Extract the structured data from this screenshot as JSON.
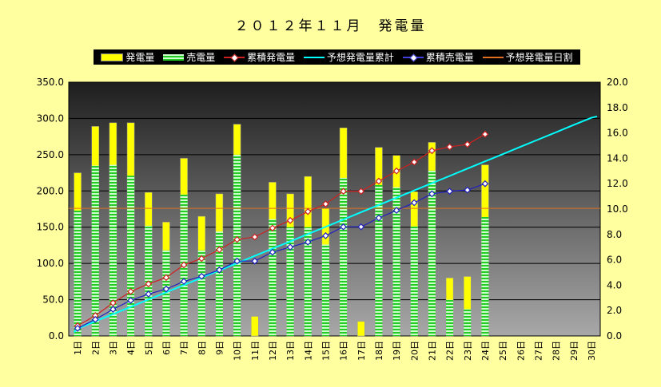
{
  "chart_data": {
    "type": "bar",
    "title": "２０１２年１１月　発電量",
    "categories": [
      "1日",
      "2日",
      "3日",
      "4日",
      "5日",
      "6日",
      "7日",
      "8日",
      "9日",
      "10日",
      "11日",
      "12日",
      "13日",
      "14日",
      "15日",
      "16日",
      "17日",
      "18日",
      "19日",
      "20日",
      "21日",
      "22日",
      "23日",
      "24日",
      "25日",
      "26日",
      "27日",
      "28日",
      "29日",
      "30日"
    ],
    "ylim_left": [
      0,
      350
    ],
    "ylim_right": [
      0,
      20
    ],
    "left_ticks": [
      "0.0",
      "50.0",
      "100.0",
      "150.0",
      "200.0",
      "250.0",
      "300.0",
      "350.0"
    ],
    "right_ticks": [
      "0.0",
      "2.0",
      "4.0",
      "6.0",
      "8.0",
      "10.0",
      "12.0",
      "14.0",
      "16.0",
      "18.0",
      "20.0"
    ],
    "grid": true,
    "legend_position": "top",
    "series": [
      {
        "name": "発電量",
        "kind": "bar",
        "axis": "left",
        "color": "#FFFF00",
        "values": [
          225,
          289,
          294,
          294,
          198,
          157,
          245,
          165,
          196,
          292,
          27,
          212,
          196,
          220,
          176,
          287,
          20,
          260,
          249,
          199,
          267,
          80,
          82,
          236,
          null,
          null,
          null,
          null,
          null,
          null
        ]
      },
      {
        "name": "売電量",
        "kind": "bar",
        "axis": "left",
        "color": "#33DD33",
        "values": [
          173,
          235,
          236,
          221,
          152,
          118,
          195,
          118,
          144,
          250,
          0,
          161,
          150,
          150,
          126,
          218,
          0,
          208,
          205,
          151,
          228,
          50,
          37,
          164,
          null,
          null,
          null,
          null,
          null,
          null
        ]
      },
      {
        "name": "累積発電量",
        "kind": "line-marker",
        "axis": "right",
        "color": "#D02020",
        "values": [
          0.8,
          1.6,
          2.6,
          3.5,
          4.1,
          4.6,
          5.6,
          6.1,
          6.8,
          7.6,
          7.8,
          8.5,
          9.1,
          9.8,
          10.4,
          11.4,
          11.4,
          12.2,
          13.0,
          13.7,
          14.6,
          14.9,
          15.1,
          15.9,
          null,
          null,
          null,
          null,
          null,
          null
        ]
      },
      {
        "name": "予想発電量累計",
        "kind": "line",
        "axis": "right",
        "color": "#00FFFF",
        "values": [
          0.57,
          1.15,
          1.72,
          2.29,
          2.87,
          3.44,
          4.01,
          4.59,
          5.16,
          5.73,
          6.31,
          6.88,
          7.45,
          8.03,
          8.6,
          9.17,
          9.75,
          10.32,
          10.89,
          11.47,
          12.04,
          12.61,
          13.19,
          13.76,
          14.33,
          14.91,
          15.48,
          16.05,
          16.63,
          17.2
        ]
      },
      {
        "name": "累積売電量",
        "kind": "line-marker",
        "axis": "right",
        "color": "#2020C0",
        "values": [
          0.6,
          1.3,
          2.1,
          2.8,
          3.3,
          3.7,
          4.3,
          4.7,
          5.2,
          5.9,
          5.9,
          6.6,
          7.0,
          7.4,
          7.9,
          8.6,
          8.6,
          9.3,
          9.9,
          10.5,
          11.2,
          11.4,
          11.5,
          12.0,
          null,
          null,
          null,
          null,
          null,
          null
        ]
      },
      {
        "name": "予想発電量日割",
        "kind": "hline",
        "axis": "left",
        "color": "#E07020",
        "value": 176
      }
    ]
  }
}
